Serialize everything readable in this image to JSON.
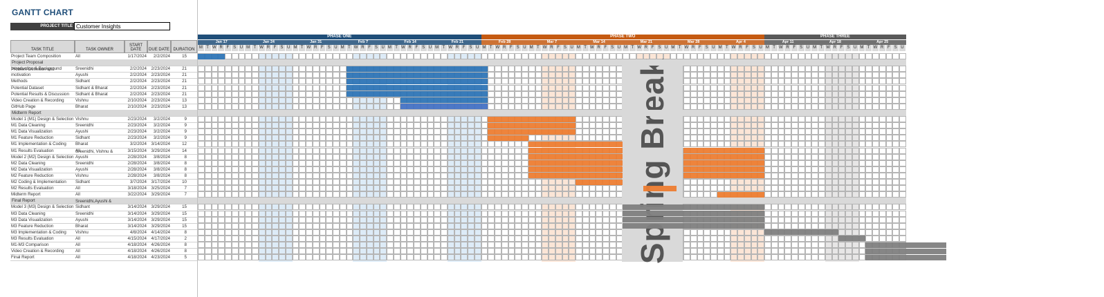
{
  "title": "GANTT CHART",
  "project_title_label": "PROJECT TITLE",
  "project_title": "Customer Insights",
  "headers": {
    "task": "TASK TITLE",
    "owner": "TASK OWNER",
    "start": "START DATE",
    "due": "DUE DATE",
    "duration": "DURATION"
  },
  "phases": [
    {
      "name": "PHASE ONE",
      "color": "#1f4e79",
      "light": "#ddebf7"
    },
    {
      "name": "PHASE TWO",
      "color": "#c55a11",
      "light": "#fbe5d6"
    },
    {
      "name": "PHASE THREE",
      "color": "#595959",
      "light": "#e7e6e6"
    }
  ],
  "weeks": [
    "Jan 17",
    "Jan 24",
    "Jan 31",
    "Feb 7",
    "Feb 14",
    "Feb 21",
    "Feb 28",
    "Mar 7",
    "Mar 14",
    "Mar 21",
    "Mar 28",
    "Apr 4",
    "Apr 11",
    "Apr 18",
    "Apr 25"
  ],
  "day_letters": [
    "M",
    "T",
    "W",
    "R",
    "F",
    "S",
    "U"
  ],
  "spring_break": "Spring Break",
  "rows": [
    {
      "type": "task",
      "task": "Project Team Composition",
      "owner": "All",
      "start": "1/17/2024",
      "due": "2/2/2024",
      "duration": "15",
      "bar": [
        0,
        3
      ],
      "color": "#2e75b6"
    },
    {
      "type": "section",
      "task": "Project Proposal"
    },
    {
      "type": "task",
      "task": "Introduction & Background",
      "owner": "Sreenidhi",
      "start": "2/2/2024",
      "due": "2/23/2024",
      "duration": "21",
      "bar": [
        22,
        42
      ],
      "color": "#2e75b6"
    },
    {
      "type": "task2",
      "task": "Problem Definition and",
      "task2": "motivation",
      "owner": "Ayushi",
      "start": "2/2/2024",
      "due": "2/23/2024",
      "duration": "21",
      "bar": [
        22,
        42
      ],
      "color": "#2e75b6"
    },
    {
      "type": "task",
      "task": "Methods",
      "owner": "Sidhant",
      "start": "2/2/2024",
      "due": "2/23/2024",
      "duration": "21",
      "bar": [
        22,
        42
      ],
      "color": "#2e75b6"
    },
    {
      "type": "task",
      "task": "Potential Dataset",
      "owner": "Sidhant & Bharat",
      "start": "2/2/2024",
      "due": "2/23/2024",
      "duration": "21",
      "bar": [
        22,
        42
      ],
      "color": "#2e75b6"
    },
    {
      "type": "task",
      "task": "Potential Results & Discussion",
      "owner": "Sidhant & Bharat",
      "start": "2/2/2024",
      "due": "2/23/2024",
      "duration": "21",
      "bar": [
        22,
        42
      ],
      "color": "#2e75b6"
    },
    {
      "type": "task",
      "task": "Video Creation & Recording",
      "owner": "Vishnu",
      "start": "2/10/2024",
      "due": "2/23/2024",
      "duration": "13",
      "bar": [
        30,
        42
      ],
      "color": "#2e75b6"
    },
    {
      "type": "task",
      "task": "GitHub Page",
      "owner": "Bharat",
      "start": "2/10/2024",
      "due": "2/23/2024",
      "duration": "13",
      "bar": [
        30,
        42
      ],
      "color": "#4472c4"
    },
    {
      "type": "section",
      "task": "Midterm Report"
    },
    {
      "type": "task",
      "task": "Model 1 (M1) Design & Selection",
      "owner": "Vishnu",
      "start": "2/23/2024",
      "due": "3/2/2024",
      "duration": "9",
      "bar": [
        43,
        55
      ],
      "color": "#ed7d31"
    },
    {
      "type": "task",
      "task": "M1 Data Cleaning",
      "owner": "Sreenidhi",
      "start": "2/23/2024",
      "due": "3/2/2024",
      "duration": "9",
      "bar": [
        43,
        55
      ],
      "color": "#ed7d31"
    },
    {
      "type": "task",
      "task": "M1 Data Visualization",
      "owner": "Ayushi",
      "start": "2/23/2024",
      "due": "3/2/2024",
      "duration": "9",
      "bar": [
        43,
        55
      ],
      "color": "#ed7d31"
    },
    {
      "type": "task",
      "task": "M1 Feature Reduction",
      "owner": "Sidhant",
      "start": "2/23/2024",
      "due": "3/2/2024",
      "duration": "9",
      "bar": [
        43,
        48
      ],
      "color": "#ed7d31"
    },
    {
      "type": "task",
      "task": "M1 Implementation & Coding",
      "owner": "Bharat",
      "start": "3/2/2024",
      "due": "3/14/2024",
      "duration": "12",
      "bar": [
        49,
        63
      ],
      "color": "#ed7d31"
    },
    {
      "type": "task",
      "task": "M1 Results Evaluation",
      "owner": "All",
      "start": "3/15/2024",
      "due": "3/29/2024",
      "duration": "14",
      "bar": [
        49,
        83
      ],
      "color": "#ed7d31"
    },
    {
      "type": "task2",
      "task": "Sreenidhi, Vishnu &",
      "task2": "Model 2 (M2) Design & Selection",
      "owner": "Sreenidhi, Vishnu &",
      "owner2": "Ayushi",
      "start": "2/28/2024",
      "due": "3/8/2024",
      "duration": "8",
      "bar": [
        49,
        83
      ],
      "color": "#ed7d31",
      "ownerSplit": true
    },
    {
      "type": "task",
      "task": "M2 Data Cleaning",
      "owner": "Sreenidhi",
      "start": "2/28/2024",
      "due": "3/8/2024",
      "duration": "8",
      "bar": [
        49,
        83
      ],
      "color": "#ed7d31"
    },
    {
      "type": "task",
      "task": "M2 Data Visualization",
      "owner": "Ayushi",
      "start": "2/28/2024",
      "due": "3/8/2024",
      "duration": "8",
      "bar": [
        49,
        83
      ],
      "color": "#ed7d31"
    },
    {
      "type": "task",
      "task": "M2 Feature Reduction",
      "owner": "Vishnu",
      "start": "2/28/2024",
      "due": "3/8/2024",
      "duration": "8",
      "bar": [
        49,
        83
      ],
      "color": "#ed7d31"
    },
    {
      "type": "task",
      "task": "M2 Coding & Implementation",
      "owner": "Sidhant",
      "start": "3/7/2024",
      "due": "3/17/2024",
      "duration": "10",
      "bar": [
        56,
        65
      ],
      "color": "#ed7d31"
    },
    {
      "type": "task",
      "task": "M2 Results Evaluation",
      "owner": "All",
      "start": "3/18/2024",
      "due": "3/25/2024",
      "duration": "7",
      "bar": [
        66,
        70
      ],
      "color": "#ed7d31"
    },
    {
      "type": "task",
      "task": "Midterm Report",
      "owner": "All",
      "start": "3/22/2024",
      "due": "3/29/2024",
      "duration": "7",
      "bar": [
        77,
        83
      ],
      "color": "#ed7d31"
    },
    {
      "type": "section",
      "task": "Final Report"
    },
    {
      "type": "task2",
      "task": "Sreenidhi,Ayushi &",
      "task2": "Model 3 (M3) Design & Selection",
      "owner": "Sreenidhi,Ayushi &",
      "owner2": "Sidhant",
      "start": "3/14/2024",
      "due": "3/29/2024",
      "duration": "15",
      "bar": [
        63,
        83
      ],
      "color": "#7f7f7f",
      "ownerSplit": true
    },
    {
      "type": "task",
      "task": "M3 Data Cleaning",
      "owner": "Sreenidhi",
      "start": "3/14/2024",
      "due": "3/29/2024",
      "duration": "15",
      "bar": [
        63,
        83
      ],
      "color": "#7f7f7f"
    },
    {
      "type": "task",
      "task": "M3 Data Visualization",
      "owner": "Ayushi",
      "start": "3/14/2024",
      "due": "3/29/2024",
      "duration": "15",
      "bar": [
        63,
        83
      ],
      "color": "#7f7f7f"
    },
    {
      "type": "task",
      "task": "M3 Feature Reduction",
      "owner": "Bharat",
      "start": "3/14/2024",
      "due": "3/29/2024",
      "duration": "15",
      "bar": [
        63,
        83
      ],
      "color": "#7f7f7f"
    },
    {
      "type": "task",
      "task": "M3 Implementation & Coding",
      "owner": "Vishnu",
      "start": "4/8/2024",
      "due": "4/14/2024",
      "duration": "8",
      "bar": [
        84,
        94
      ],
      "color": "#7f7f7f"
    },
    {
      "type": "task",
      "task": "M3 Results Evaluation",
      "owner": "All",
      "start": "4/15/2024",
      "due": "4/17/2024",
      "duration": "2",
      "bar": [
        95,
        98
      ],
      "color": "#7f7f7f"
    },
    {
      "type": "task",
      "task": "M1-M3 Comparison",
      "owner": "All",
      "start": "4/18/2024",
      "due": "4/26/2024",
      "duration": "8",
      "bar": [
        99,
        110
      ],
      "color": "#7f7f7f"
    },
    {
      "type": "task",
      "task": "Video Creation & Recording",
      "owner": "All",
      "start": "4/18/2024",
      "due": "4/26/2024",
      "duration": "8",
      "bar": [
        99,
        110
      ],
      "color": "#7f7f7f"
    },
    {
      "type": "task",
      "task": "Final Report",
      "owner": "All",
      "start": "4/18/2024",
      "due": "4/23/2024",
      "duration": "5",
      "bar": [
        99,
        110
      ],
      "color": "#7f7f7f"
    }
  ]
}
